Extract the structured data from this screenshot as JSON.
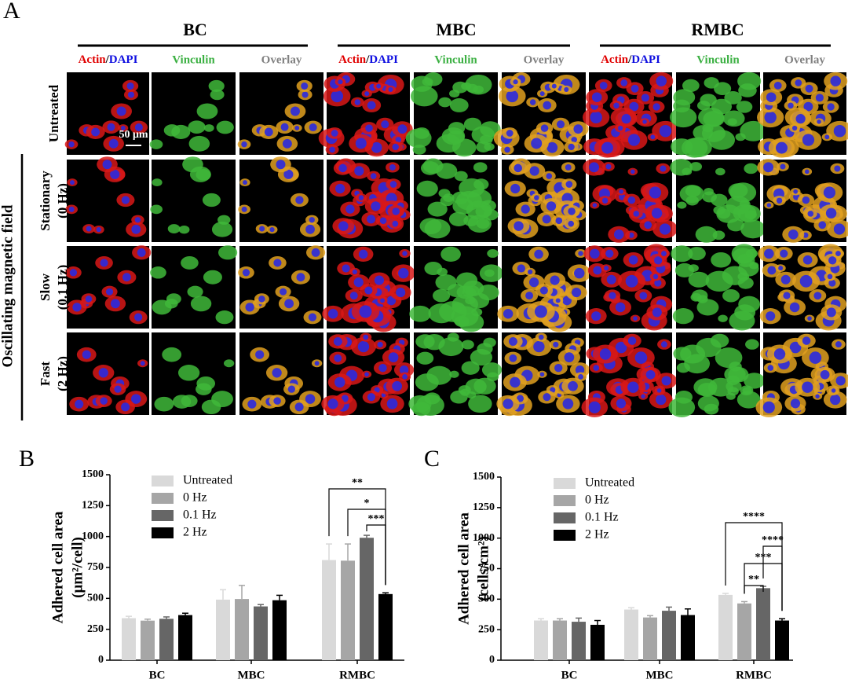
{
  "panel_a": {
    "label": "A",
    "groups": [
      {
        "name": "BC",
        "actin": "Actin",
        "slash": "/",
        "dapi": "DAPI",
        "vinculin": "Vinculin",
        "overlay": "Overlay"
      },
      {
        "name": "MBC",
        "actin": "Actin",
        "slash": "/",
        "dapi": "DAPI",
        "vinculin": "Vinculin",
        "overlay": "Overlay"
      },
      {
        "name": "RMBC",
        "actin": "Actin",
        "slash": "/",
        "dapi": "DAPI",
        "vinculin": "Vinculin",
        "overlay": "Overlay"
      }
    ],
    "rows": [
      [
        "Untreated"
      ],
      [
        "Stationary",
        "(0 Hz)"
      ],
      [
        "Slow",
        "(0.1 Hz)"
      ],
      [
        "Fast",
        "(2 Hz)"
      ]
    ],
    "side_label": "Oscillating magnetic field",
    "scale_bar": "50 μm"
  },
  "chart_data": [
    {
      "type": "bar",
      "panel_label": "B",
      "ylabel": [
        "Adhered cell area",
        "(μm²/cell)"
      ],
      "categories": [
        "BC",
        "MBC",
        "RMBC"
      ],
      "series": [
        {
          "name": "Untreated",
          "color": "#d9d9d9",
          "values": [
            340,
            490,
            810
          ],
          "errors": [
            15,
            80,
            130
          ]
        },
        {
          "name": "0 Hz",
          "color": "#a6a6a6",
          "values": [
            320,
            495,
            805
          ],
          "errors": [
            12,
            110,
            135
          ]
        },
        {
          "name": "0.1 Hz",
          "color": "#666666",
          "values": [
            335,
            435,
            990
          ],
          "errors": [
            15,
            15,
            20
          ]
        },
        {
          "name": "2 Hz",
          "color": "#000000",
          "values": [
            365,
            485,
            535
          ],
          "errors": [
            15,
            40,
            10
          ]
        }
      ],
      "ylim": [
        0,
        1500
      ],
      "yticks": [
        0,
        250,
        500,
        750,
        1000,
        1250,
        1500
      ],
      "annotations": [
        "**",
        "*",
        "***"
      ]
    },
    {
      "type": "bar",
      "panel_label": "C",
      "ylabel": [
        "Adhered cell area",
        "(cells/cm²)"
      ],
      "categories": [
        "BC",
        "MBC",
        "RMBC"
      ],
      "series": [
        {
          "name": "Untreated",
          "color": "#d9d9d9",
          "values": [
            325,
            415,
            535
          ],
          "errors": [
            15,
            15,
            12
          ]
        },
        {
          "name": "0 Hz",
          "color": "#a6a6a6",
          "values": [
            325,
            350,
            465
          ],
          "errors": [
            15,
            15,
            15
          ]
        },
        {
          "name": "0.1 Hz",
          "color": "#666666",
          "values": [
            315,
            405,
            590
          ],
          "errors": [
            30,
            30,
            15
          ]
        },
        {
          "name": "2 Hz",
          "color": "#000000",
          "values": [
            290,
            370,
            325
          ],
          "errors": [
            35,
            50,
            15
          ]
        }
      ],
      "ylim": [
        0,
        1500
      ],
      "yticks": [
        0,
        250,
        500,
        750,
        1000,
        1250,
        1500
      ],
      "annotations": [
        "****",
        "****",
        "***",
        "**"
      ]
    }
  ]
}
